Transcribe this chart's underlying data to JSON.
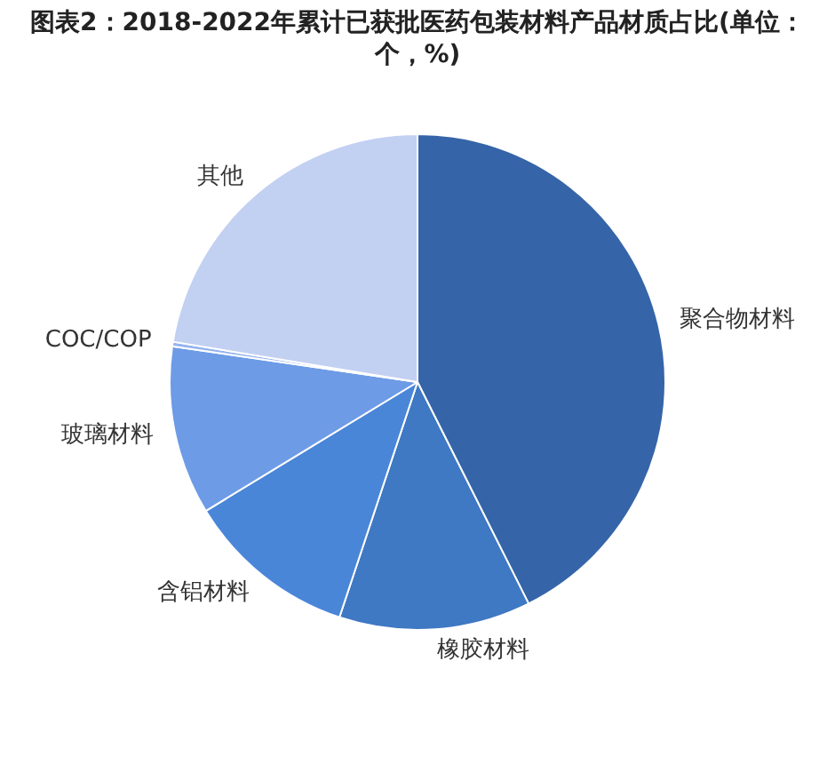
{
  "chart_data": {
    "type": "pie",
    "title": "图表2：2018-2022年累计已获批医药包装材料产品材质占比(单位：个，%)",
    "categories": [
      "聚合物材料",
      "橡胶材料",
      "含铝材料",
      "玻璃材料",
      "COC/COP",
      "其他"
    ],
    "values": [
      42.6,
      12.5,
      11.2,
      11.0,
      0.3,
      22.4
    ],
    "colors": [
      "#3565a8",
      "#3f78c3",
      "#4a86d8",
      "#6d9be6",
      "#94b4ee",
      "#c2d0f2"
    ],
    "legend": false
  }
}
